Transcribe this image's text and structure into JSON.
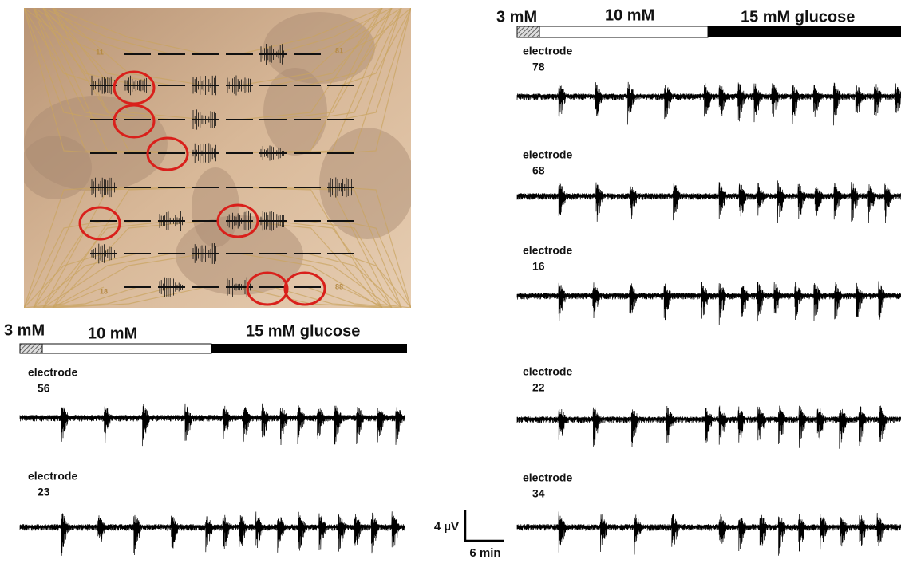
{
  "micrograph": {
    "corner_labels": [
      "11",
      "81",
      "18",
      "88"
    ]
  },
  "left_panel": {
    "protocol": [
      "3 mM",
      "10 mM",
      "15 mM glucose"
    ],
    "traces": [
      {
        "label": "electrode",
        "number": "56"
      },
      {
        "label": "electrode",
        "number": "23"
      }
    ]
  },
  "right_panel": {
    "protocol": [
      "3 mM",
      "10 mM",
      "15 mM glucose"
    ],
    "traces": [
      {
        "label": "electrode",
        "number": "78"
      },
      {
        "label": "electrode",
        "number": "68"
      },
      {
        "label": "electrode",
        "number": "16"
      },
      {
        "label": "electrode",
        "number": "22"
      },
      {
        "label": "electrode",
        "number": "34"
      }
    ]
  },
  "scale_bar": {
    "amplitude": "4 µV",
    "time": "6 min"
  }
}
